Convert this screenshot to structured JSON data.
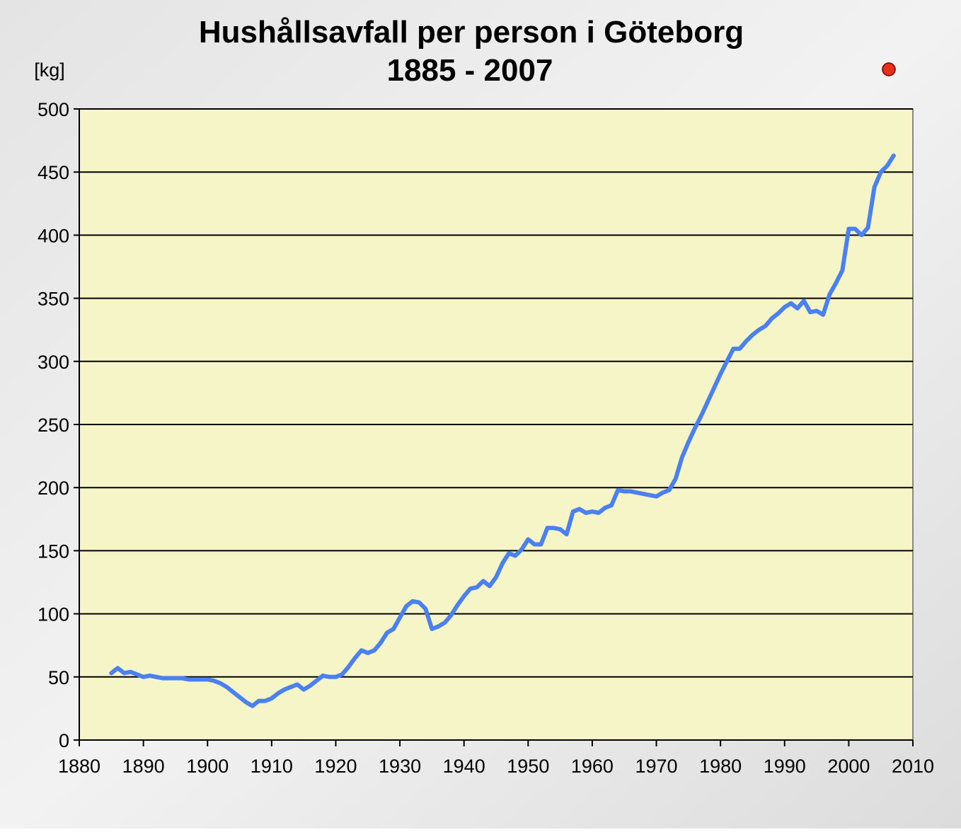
{
  "chart_data": {
    "type": "line",
    "title": "Hushållsavfall per person i Göteborg",
    "subtitle": "1885 - 2007",
    "y_label": "[kg]",
    "x": [
      1885,
      1886,
      1887,
      1888,
      1889,
      1890,
      1891,
      1892,
      1893,
      1894,
      1895,
      1896,
      1897,
      1898,
      1899,
      1900,
      1901,
      1902,
      1903,
      1904,
      1905,
      1906,
      1907,
      1908,
      1909,
      1910,
      1911,
      1912,
      1913,
      1914,
      1915,
      1916,
      1917,
      1918,
      1919,
      1920,
      1921,
      1922,
      1923,
      1924,
      1925,
      1926,
      1927,
      1928,
      1929,
      1930,
      1931,
      1932,
      1933,
      1934,
      1935,
      1936,
      1937,
      1938,
      1939,
      1940,
      1941,
      1942,
      1943,
      1944,
      1945,
      1946,
      1947,
      1948,
      1949,
      1950,
      1951,
      1952,
      1953,
      1954,
      1955,
      1956,
      1957,
      1958,
      1959,
      1960,
      1961,
      1962,
      1963,
      1964,
      1965,
      1966,
      1967,
      1968,
      1969,
      1970,
      1971,
      1972,
      1973,
      1974,
      1975,
      1976,
      1977,
      1978,
      1979,
      1980,
      1981,
      1982,
      1983,
      1984,
      1985,
      1986,
      1987,
      1988,
      1989,
      1990,
      1991,
      1992,
      1993,
      1994,
      1995,
      1996,
      1997,
      1998,
      1999,
      2000,
      2001,
      2002,
      2003,
      2004,
      2005,
      2006,
      2007
    ],
    "series": [
      {
        "name": "Hushållsavfall",
        "color": "#4a80f0",
        "values": [
          53,
          57,
          53,
          54,
          52,
          50,
          51,
          50,
          49,
          49,
          49,
          49,
          48,
          48,
          48,
          48,
          47,
          45,
          42,
          38,
          34,
          30,
          27,
          31,
          31,
          33,
          37,
          40,
          42,
          44,
          40,
          43,
          47,
          51,
          50,
          50,
          52,
          58,
          65,
          71,
          69,
          71,
          77,
          85,
          88,
          97,
          106,
          110,
          109,
          104,
          88,
          90,
          93,
          99,
          107,
          114,
          120,
          121,
          126,
          122,
          129,
          140,
          148,
          146,
          151,
          159,
          155,
          155,
          168,
          168,
          167,
          163,
          181,
          183,
          180,
          181,
          180,
          184,
          186,
          198,
          197,
          197,
          196,
          195,
          194,
          193,
          196,
          198,
          207,
          224,
          236,
          247,
          257,
          268,
          279,
          290,
          300,
          310,
          310,
          316,
          321,
          325,
          328,
          334,
          338,
          343,
          346,
          342,
          348,
          339,
          340,
          337,
          353,
          362,
          372,
          405,
          405,
          400,
          406,
          438,
          450,
          455,
          463
        ]
      }
    ],
    "xlim": [
      1880,
      2010
    ],
    "xticks": [
      1880,
      1890,
      1900,
      1910,
      1920,
      1930,
      1940,
      1950,
      1960,
      1970,
      1980,
      1990,
      2000,
      2010
    ],
    "ylim": [
      0,
      500
    ],
    "yticks": [
      0,
      50,
      100,
      150,
      200,
      250,
      300,
      350,
      400,
      450,
      500
    ],
    "grid": true,
    "plot_background": "#f5f5c8"
  }
}
